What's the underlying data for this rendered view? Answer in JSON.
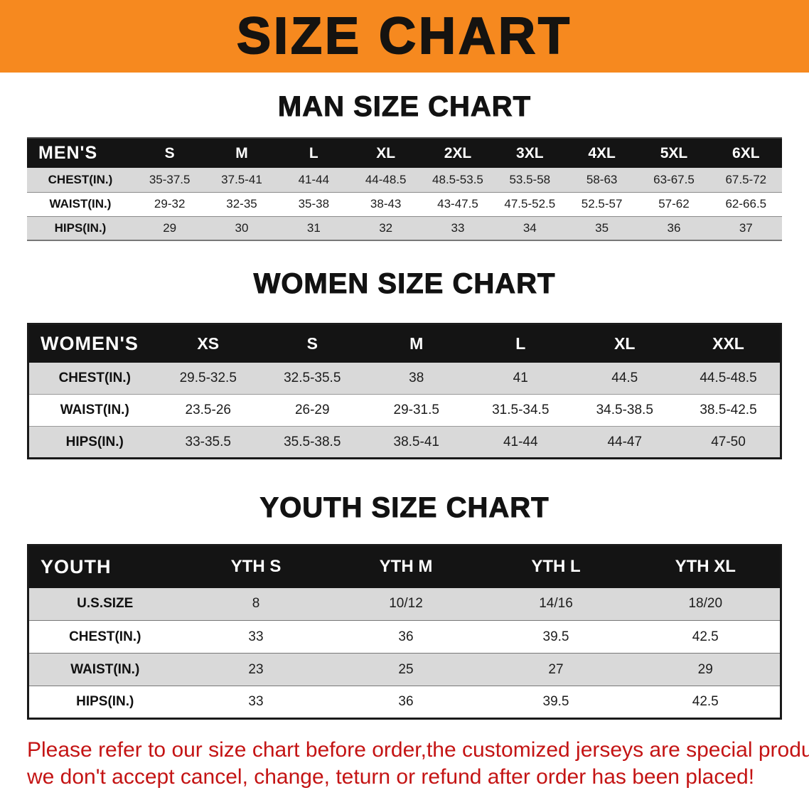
{
  "banner": {
    "title": "SIZE CHART"
  },
  "colors": {
    "banner_bg": "#F6891F",
    "header_bg": "#141414",
    "row_alt": "#d9d9d9",
    "disclaimer_red": "#c41414"
  },
  "sections": [
    {
      "id": "men",
      "heading": "MAN SIZE CHART",
      "table": {
        "header": [
          "MEN'S",
          "S",
          "M",
          "L",
          "XL",
          "2XL",
          "3XL",
          "4XL",
          "5XL",
          "6XL"
        ],
        "rows": [
          [
            "CHEST(IN.)",
            "35-37.5",
            "37.5-41",
            "41-44",
            "44-48.5",
            "48.5-53.5",
            "53.5-58",
            "58-63",
            "63-67.5",
            "67.5-72"
          ],
          [
            "WAIST(IN.)",
            "29-32",
            "32-35",
            "35-38",
            "38-43",
            "43-47.5",
            "47.5-52.5",
            "52.5-57",
            "57-62",
            "62-66.5"
          ],
          [
            "HIPS(IN.)",
            "29",
            "30",
            "31",
            "32",
            "33",
            "34",
            "35",
            "36",
            "37"
          ]
        ]
      }
    },
    {
      "id": "women",
      "heading": "WOMEN SIZE CHART",
      "table": {
        "header": [
          "WOMEN'S",
          "XS",
          "S",
          "M",
          "L",
          "XL",
          "XXL"
        ],
        "rows": [
          [
            "CHEST(IN.)",
            "29.5-32.5",
            "32.5-35.5",
            "38",
            "41",
            "44.5",
            "44.5-48.5"
          ],
          [
            "WAIST(IN.)",
            "23.5-26",
            "26-29",
            "29-31.5",
            "31.5-34.5",
            "34.5-38.5",
            "38.5-42.5"
          ],
          [
            "HIPS(IN.)",
            "33-35.5",
            "35.5-38.5",
            "38.5-41",
            "41-44",
            "44-47",
            "47-50"
          ]
        ]
      }
    },
    {
      "id": "youth",
      "heading": "YOUTH SIZE CHART",
      "table": {
        "header": [
          "YOUTH",
          "YTH S",
          "YTH M",
          "YTH L",
          "YTH XL"
        ],
        "rows": [
          [
            "U.S.SIZE",
            "8",
            "10/12",
            "14/16",
            "18/20"
          ],
          [
            "CHEST(IN.)",
            "33",
            "36",
            "39.5",
            "42.5"
          ],
          [
            "WAIST(IN.)",
            "23",
            "25",
            "27",
            "29"
          ],
          [
            "HIPS(IN.)",
            "33",
            "36",
            "39.5",
            "42.5"
          ]
        ]
      }
    }
  ],
  "disclaimer": {
    "line1": "Please refer to our size chart before order,the customized jerseys are special products,",
    "line2": "we don't accept cancel, change, teturn or refund after order has been placed!"
  }
}
